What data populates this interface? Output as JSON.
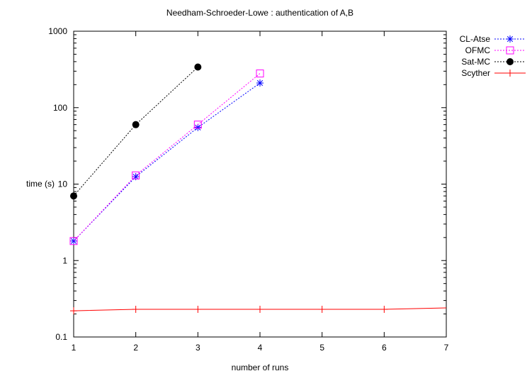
{
  "chart_data": {
    "type": "line",
    "title": "Needham-Schroeder-Lowe : authentication of A,B",
    "xlabel": "number of runs",
    "ylabel": "time (s)",
    "xlim": [
      1,
      7
    ],
    "ylim": [
      0.1,
      1000
    ],
    "yscale": "log",
    "xticks": [
      "1",
      "2",
      "3",
      "4",
      "5",
      "6",
      "7"
    ],
    "yticks": [
      "0.1",
      "1",
      "10",
      "100",
      "1000"
    ],
    "grid": false,
    "legend_position": "top-right, outside plot",
    "series": [
      {
        "name": "CL-Atse",
        "color": "#0000ff",
        "dash": "dotted",
        "marker": "asterisk",
        "x": [
          1,
          2,
          3,
          4
        ],
        "y": [
          1.8,
          12.5,
          55,
          210
        ]
      },
      {
        "name": "OFMC",
        "color": "#ff00ff",
        "dash": "dotted",
        "marker": "open-square",
        "x": [
          1,
          2,
          3,
          4
        ],
        "y": [
          1.8,
          13,
          60,
          280
        ]
      },
      {
        "name": "Sat-MC",
        "color": "#000000",
        "dash": "dotted",
        "marker": "filled-circle",
        "x": [
          1,
          2,
          3
        ],
        "y": [
          7,
          60,
          340
        ]
      },
      {
        "name": "Scyther",
        "color": "#ff0000",
        "dash": "solid",
        "marker": "plus",
        "x": [
          1,
          2,
          3,
          4,
          5,
          6,
          7
        ],
        "y": [
          0.22,
          0.23,
          0.23,
          0.23,
          0.23,
          0.23,
          0.24
        ]
      }
    ]
  }
}
